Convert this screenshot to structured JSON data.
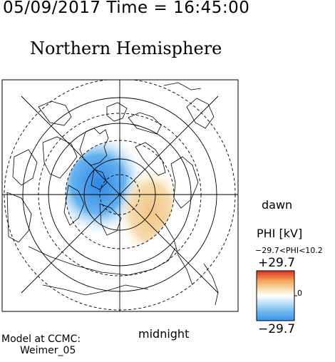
{
  "header": {
    "date": "05/09/2017",
    "time_prefix": "Time = ",
    "time": "16:45:00"
  },
  "title": "Northern Hemisphere",
  "orientation": {
    "right": "dawn",
    "bottom": "midnight"
  },
  "model": {
    "line1": "Model at CCMC:",
    "line2": "Weimer_05"
  },
  "colorbar": {
    "title": "PHI [kV]",
    "range_text": "−29.7<PHI<10.2",
    "max_label": "+29.7",
    "mid_label": "0",
    "min_label": "−29.7",
    "colors": {
      "negative": "#3d92e8",
      "neutral": "#ffffff",
      "positive": "#e03020"
    }
  },
  "potential_pattern": {
    "minimum_kv": -29.7,
    "maximum_kv": 10.2,
    "negative_color": "#4aa0ec",
    "positive_color": "#f2c98a"
  }
}
